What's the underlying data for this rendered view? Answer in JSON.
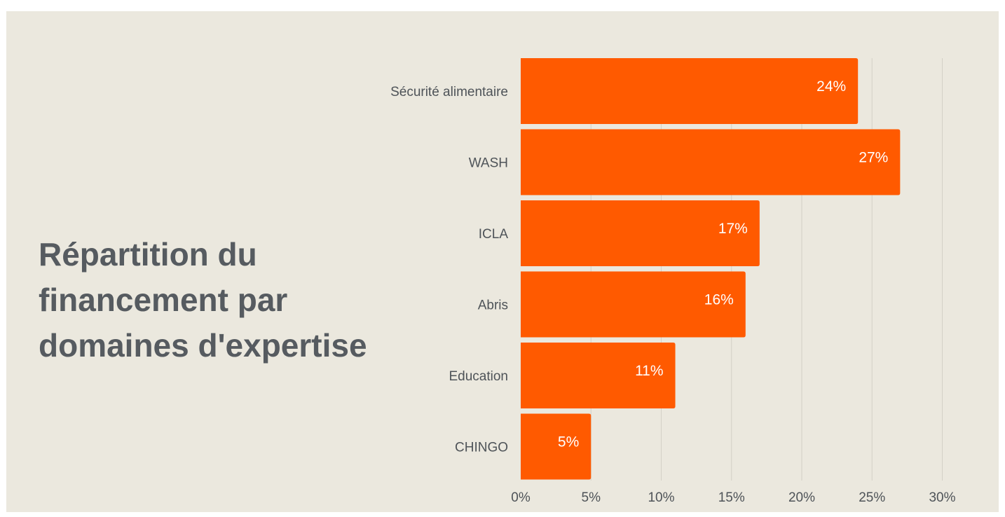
{
  "chart_data": {
    "type": "bar",
    "orientation": "horizontal",
    "title": "Répartition du financement par domaines d'expertise",
    "categories": [
      "Sécurité alimentaire",
      "WASH",
      "ICLA",
      "Abris",
      "Education",
      "CHINGO"
    ],
    "values": [
      24,
      27,
      17,
      16,
      11,
      5
    ],
    "value_labels": [
      "24%",
      "27%",
      "17%",
      "16%",
      "11%",
      "5%"
    ],
    "xlim": [
      0,
      30
    ],
    "xticks": [
      0,
      5,
      10,
      15,
      20,
      25,
      30
    ],
    "xtick_labels": [
      "0%",
      "5%",
      "10%",
      "15%",
      "20%",
      "25%",
      "30%"
    ],
    "xlabel": "",
    "ylabel": "",
    "grid": "vertical",
    "legend": "none",
    "colors": {
      "bar": "#ff5a00",
      "background": "#ebe8de",
      "grid": "#d3d0c6",
      "title": "#565b60",
      "axis_text": "#4e5358",
      "value_text": "#ffffff"
    }
  }
}
